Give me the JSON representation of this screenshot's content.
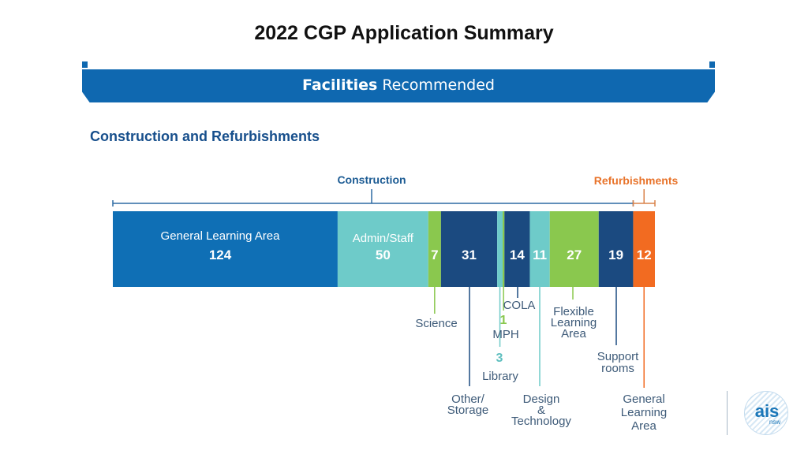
{
  "title": "2022 CGP Application Summary",
  "banner": {
    "bold": "Facilities",
    "rest": " Recommended"
  },
  "section_heading": "Construction and Refurbishments",
  "colors": {
    "construction": "#1d5c94",
    "refurbishments": "#e8732a",
    "medium_blue": "#0f6fb5",
    "teal": "#6ecbc9",
    "green": "#8ac84e",
    "navy": "#1b4a80",
    "orange": "#f26b21",
    "label": "#3d5a78"
  },
  "chart_data": {
    "type": "bar",
    "orientation": "horizontal-stacked",
    "groups": [
      {
        "name": "Construction",
        "categories": [
          "General Learning Area",
          "Admin/Staff",
          "Science",
          "Other/ Storage",
          "Library",
          "MPH",
          "COLA",
          "Design & Technology",
          "Flexible Learning Area",
          "Support rooms"
        ]
      },
      {
        "name": "Refurbishments",
        "categories": [
          "General Learning Area"
        ]
      }
    ],
    "segments": [
      {
        "label": "General Learning Area",
        "value": 124,
        "value_text": "124",
        "color": "#0f6fb5",
        "inner_label": true,
        "group": "Construction"
      },
      {
        "label": "Admin/Staff",
        "value": 50,
        "value_text": "50",
        "color": "#6ecbc9",
        "inner_label": true,
        "group": "Construction"
      },
      {
        "label": "Science",
        "value": 7,
        "value_text": "7",
        "color": "#8ac84e",
        "group": "Construction"
      },
      {
        "label": "Other/ Storage",
        "value": 31,
        "value_text": "31",
        "color": "#1b4a80",
        "group": "Construction"
      },
      {
        "label": "Library",
        "value": 3,
        "value_text": "3",
        "color": "#6ecbc9",
        "group": "Construction"
      },
      {
        "label": "MPH",
        "value": 1,
        "value_text": "1",
        "color": "#8ac84e",
        "group": "Construction"
      },
      {
        "label": "COLA",
        "value": 14,
        "value_text": "14",
        "color": "#1b4a80",
        "group": "Construction"
      },
      {
        "label": "Design & Technology",
        "value": 11,
        "value_text": "11",
        "color": "#6ecbc9",
        "group": "Construction"
      },
      {
        "label": "Flexible Learning Area",
        "value": 27,
        "value_text": "27",
        "color": "#8ac84e",
        "group": "Construction"
      },
      {
        "label": "Support rooms",
        "value": 19,
        "value_text": "19",
        "color": "#1b4a80",
        "group": "Construction"
      },
      {
        "label": "General Learning Area",
        "value": 12,
        "value_text": "12",
        "color": "#f26b21",
        "group": "Refurbishments"
      }
    ],
    "callout_text": {
      "science": "Science",
      "other_storage": [
        "Other/",
        "Storage"
      ],
      "library": "Library",
      "mph": "MPH",
      "cola": "COLA",
      "design_tech": [
        "Design",
        "&",
        "Technology"
      ],
      "flexible": [
        "Flexible",
        "Learning",
        "Area"
      ],
      "support": [
        "Support",
        "rooms"
      ],
      "refurb_gla": [
        "General",
        "Learning",
        "Area"
      ]
    }
  },
  "logo": {
    "text": "ais",
    "sub": "nsw"
  }
}
